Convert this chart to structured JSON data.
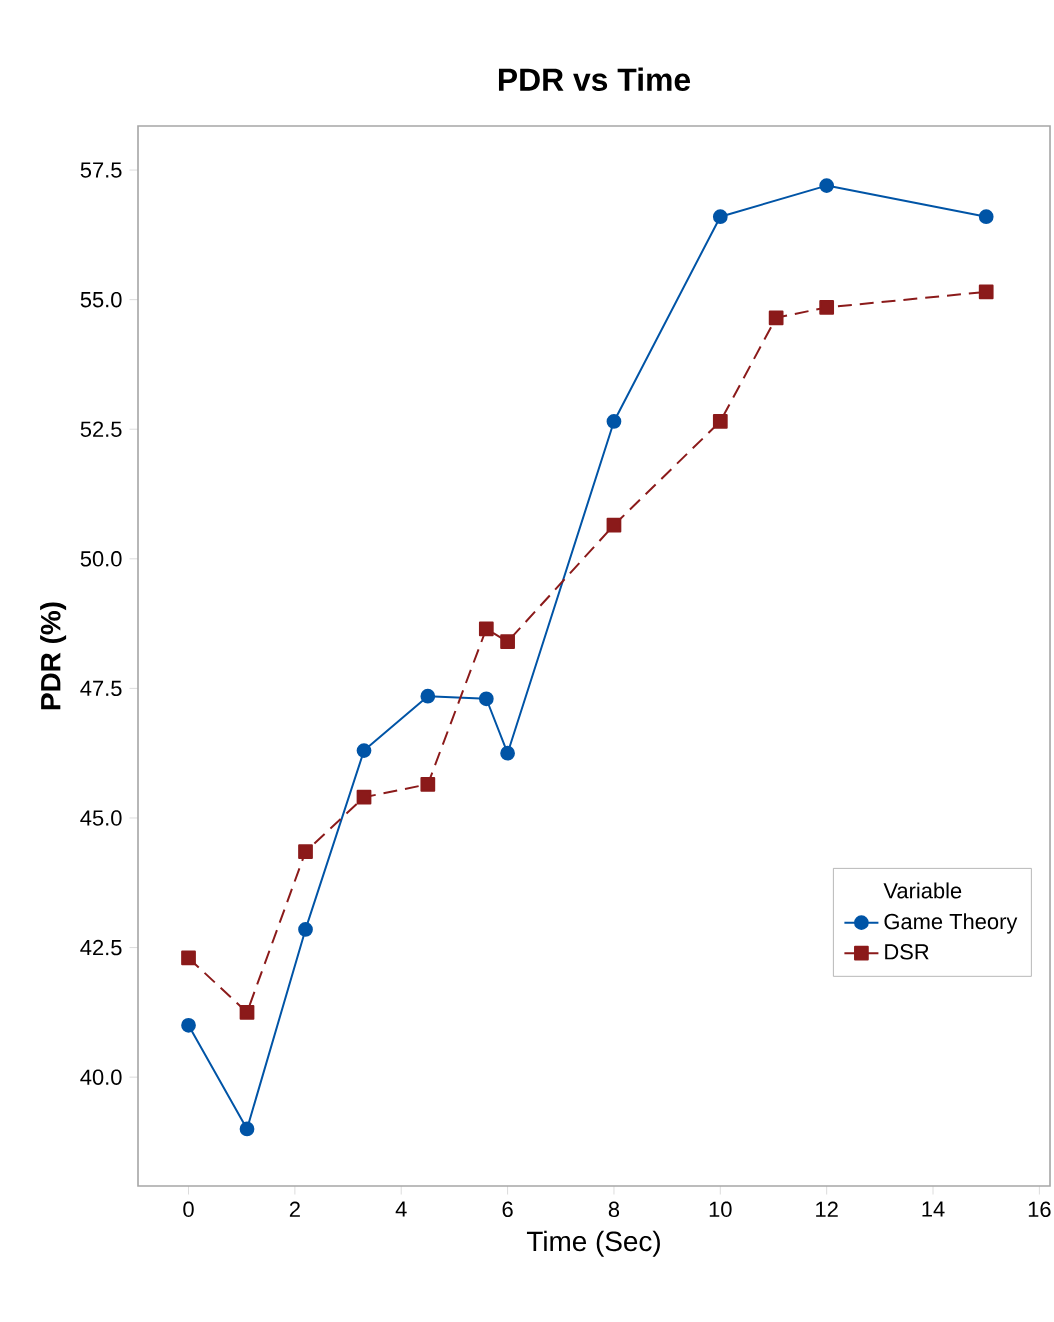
{
  "chart_data": {
    "type": "line",
    "title": "PDR vs Time",
    "xlabel": "Time (Sec)",
    "ylabel": "PDR (%)",
    "legend_title": "Variable",
    "xlim": [
      -0.95,
      16.2
    ],
    "ylim": [
      37.9,
      58.35
    ],
    "xticks": [
      0,
      2,
      4,
      6,
      8,
      10,
      12,
      14,
      16
    ],
    "yticks": [
      {
        "value": 40,
        "label": "40.0"
      },
      42.5,
      {
        "value": 45,
        "label": "45.0"
      },
      47.5,
      {
        "value": 50,
        "label": "50.0"
      },
      52.5,
      {
        "value": 55,
        "label": "55.0"
      },
      57.5
    ],
    "grid": false,
    "legend": "bottom right",
    "series": [
      {
        "name": "Game Theory",
        "color": "#0054a6",
        "marker": "circle",
        "line_style": "solid",
        "x": [
          0,
          1.1,
          2.2,
          3.3,
          4.5,
          5.6,
          6.0,
          8.0,
          10.0,
          12.0,
          15.0
        ],
        "values": [
          41.0,
          39.0,
          42.85,
          46.3,
          47.35,
          47.3,
          46.25,
          52.65,
          56.6,
          57.2,
          56.6
        ]
      },
      {
        "name": "DSR",
        "color": "#8b1a1a",
        "marker": "square",
        "line_style": "dashed",
        "x": [
          0,
          1.1,
          2.2,
          3.3,
          4.5,
          5.6,
          6.0,
          8.0,
          10.0,
          11.05,
          12.0,
          15.0
        ],
        "values": [
          42.3,
          41.25,
          44.35,
          45.4,
          45.65,
          48.65,
          48.4,
          50.65,
          52.65,
          54.65,
          54.85,
          55.15
        ]
      }
    ]
  }
}
